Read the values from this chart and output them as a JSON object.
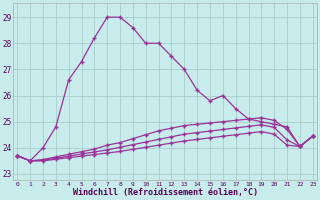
{
  "xlabel": "Windchill (Refroidissement éolien,°C)",
  "bg_color": "#c8ecec",
  "grid_color": "#aacccc",
  "line_color": "#993399",
  "yticks": [
    23,
    24,
    25,
    26,
    27,
    28,
    29
  ],
  "xticks": [
    0,
    1,
    2,
    3,
    4,
    5,
    6,
    7,
    8,
    9,
    10,
    11,
    12,
    13,
    14,
    15,
    16,
    17,
    18,
    19,
    20,
    21,
    22,
    23
  ],
  "series1": [
    23.7,
    23.5,
    24.0,
    24.8,
    26.6,
    27.3,
    28.2,
    29.0,
    29.0,
    28.6,
    28.0,
    28.0,
    27.5,
    27.0,
    26.2,
    25.8,
    26.0,
    25.5,
    25.1,
    25.0,
    24.9,
    24.8,
    24.05,
    24.45
  ],
  "series2": [
    23.7,
    23.5,
    23.55,
    23.65,
    23.75,
    23.85,
    23.95,
    24.1,
    24.2,
    24.35,
    24.5,
    24.65,
    24.75,
    24.85,
    24.9,
    24.95,
    25.0,
    25.05,
    25.1,
    25.15,
    25.05,
    24.7,
    24.05,
    24.45
  ],
  "series3": [
    23.7,
    23.5,
    23.52,
    23.6,
    23.68,
    23.76,
    23.84,
    23.92,
    24.02,
    24.12,
    24.22,
    24.32,
    24.42,
    24.52,
    24.58,
    24.64,
    24.7,
    24.76,
    24.82,
    24.88,
    24.78,
    24.3,
    24.05,
    24.45
  ],
  "series4": [
    23.7,
    23.5,
    23.5,
    23.56,
    23.62,
    23.68,
    23.74,
    23.8,
    23.86,
    23.94,
    24.02,
    24.1,
    24.18,
    24.26,
    24.32,
    24.38,
    24.44,
    24.5,
    24.56,
    24.62,
    24.52,
    24.1,
    24.05,
    24.45
  ]
}
